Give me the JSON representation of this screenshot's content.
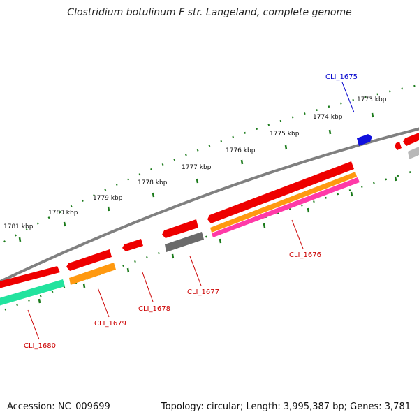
{
  "title": "Clostridium botulinum F str. Langeland, complete genome",
  "footer": {
    "accession": "Accession: NC_009699",
    "topology": "Topology: circular; Length: 3,995,387 bp; Genes: 3,781"
  },
  "scale_labels": [
    "1773 kbp",
    "1774 kbp",
    "1775 kbp",
    "1776 kbp",
    "1777 kbp",
    "1778 kbp",
    "1779 kbp",
    "1780 kbp",
    "1781 kbp"
  ],
  "gene_labels": [
    {
      "text": "CLI_1675",
      "color": "#0000cc"
    },
    {
      "text": "CLI_1676",
      "color": "#cc0000"
    },
    {
      "text": "CLI_1677",
      "color": "#cc0000"
    },
    {
      "text": "CLI_1678",
      "color": "#cc0000"
    },
    {
      "text": "CLI_1679",
      "color": "#cc0000"
    },
    {
      "text": "CLI_1680",
      "color": "#cc0000"
    }
  ],
  "colors": {
    "scale": "#1a7a1a",
    "backbone": "#808080",
    "gene_red": "#ee0000",
    "gene_blue": "#1010dd",
    "orange": "#ff9910",
    "pink": "#ff3aa8",
    "grey": "#6b6b6b",
    "light_grey": "#b8b8b8",
    "teal": "#22e39e"
  }
}
